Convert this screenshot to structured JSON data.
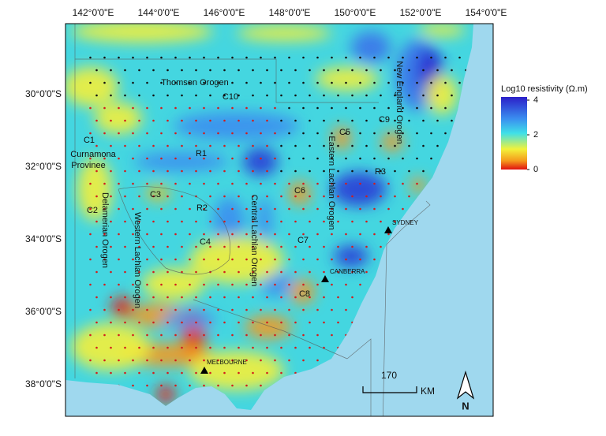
{
  "map": {
    "lon_labels": [
      {
        "value": 142,
        "label": "142°0'0\"E"
      },
      {
        "value": 144,
        "label": "144°0'0\"E"
      },
      {
        "value": 146,
        "label": "146°0'0\"E"
      },
      {
        "value": 148,
        "label": "148°0'0\"E"
      },
      {
        "value": 150,
        "label": "150°0'0\"E"
      },
      {
        "value": 152,
        "label": "152°0'0\"E"
      },
      {
        "value": 154,
        "label": "154°0'0\"E"
      }
    ],
    "lat_labels": [
      {
        "value": 30,
        "label": "30°0'0\"S"
      },
      {
        "value": 32,
        "label": "32°0'0\"S"
      },
      {
        "value": 34,
        "label": "34°0'0\"S"
      },
      {
        "value": 36,
        "label": "36°0'0\"S"
      },
      {
        "value": 38,
        "label": "38°0'0\"S"
      }
    ],
    "regions": [
      "Thomson Orogen",
      "C10",
      "C1",
      "Curnamona",
      "Provinee",
      "R1",
      "C5",
      "C9",
      "R3",
      "C6",
      "C3",
      "C2",
      "R2",
      "C4",
      "C7",
      "C8",
      "New England Orogen",
      "Eastern Lachlan Orogen",
      "Central Lachlan Orogen",
      "Western Lachlan Orogen",
      "Delamerian Orogen"
    ],
    "cities": [
      "SYDNEY",
      "CANBERRA",
      "MELBOURNE"
    ],
    "legend": {
      "title": "Log10 resistivity (Ω.m)",
      "range": [
        0,
        4
      ],
      "ticks": [
        4,
        2,
        0
      ]
    },
    "scale_bar": {
      "distance": "170",
      "unit": "KM"
    },
    "north": "N"
  }
}
